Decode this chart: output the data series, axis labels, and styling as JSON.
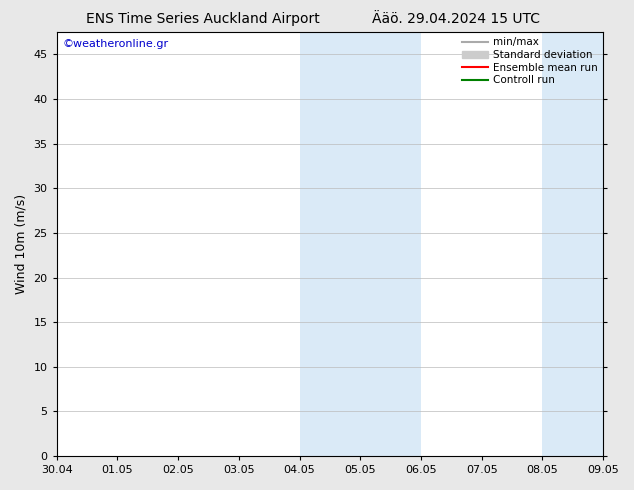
{
  "title_left": "ENS Time Series Auckland Airport",
  "title_right": "Ääö. 29.04.2024 15 UTC",
  "watermark": "©weatheronline.gr",
  "ylabel": "Wind 10m (m/s)",
  "ylim": [
    0,
    47.5
  ],
  "yticks": [
    0,
    5,
    10,
    15,
    20,
    25,
    30,
    35,
    40,
    45
  ],
  "xtick_labels": [
    "30.04",
    "01.05",
    "02.05",
    "03.05",
    "04.05",
    "05.05",
    "06.05",
    "07.05",
    "08.05",
    "09.05"
  ],
  "xtick_positions": [
    0,
    1,
    2,
    3,
    4,
    5,
    6,
    7,
    8,
    9
  ],
  "shaded_bands": [
    {
      "xstart": 4,
      "xend": 5,
      "color": "#daeaf7"
    },
    {
      "xstart": 5,
      "xend": 6,
      "color": "#daeaf7"
    },
    {
      "xstart": 8,
      "xend": 9,
      "color": "#daeaf7"
    }
  ],
  "legend_entries": [
    {
      "label": "min/max",
      "color": "#aaaaaa",
      "lw": 1.5,
      "style": "solid"
    },
    {
      "label": "Standard deviation",
      "color": "#cccccc",
      "lw": 6,
      "style": "solid"
    },
    {
      "label": "Ensemble mean run",
      "color": "red",
      "lw": 1.5,
      "style": "solid"
    },
    {
      "label": "Controll run",
      "color": "green",
      "lw": 1.5,
      "style": "solid"
    }
  ],
  "watermark_color": "#0000cc",
  "title_fontsize": 10,
  "axis_fontsize": 9,
  "tick_fontsize": 8,
  "bg_color": "#e8e8e8",
  "plot_bg_color": "#ffffff",
  "grid_color": "#bbbbbb",
  "border_color": "#000000"
}
